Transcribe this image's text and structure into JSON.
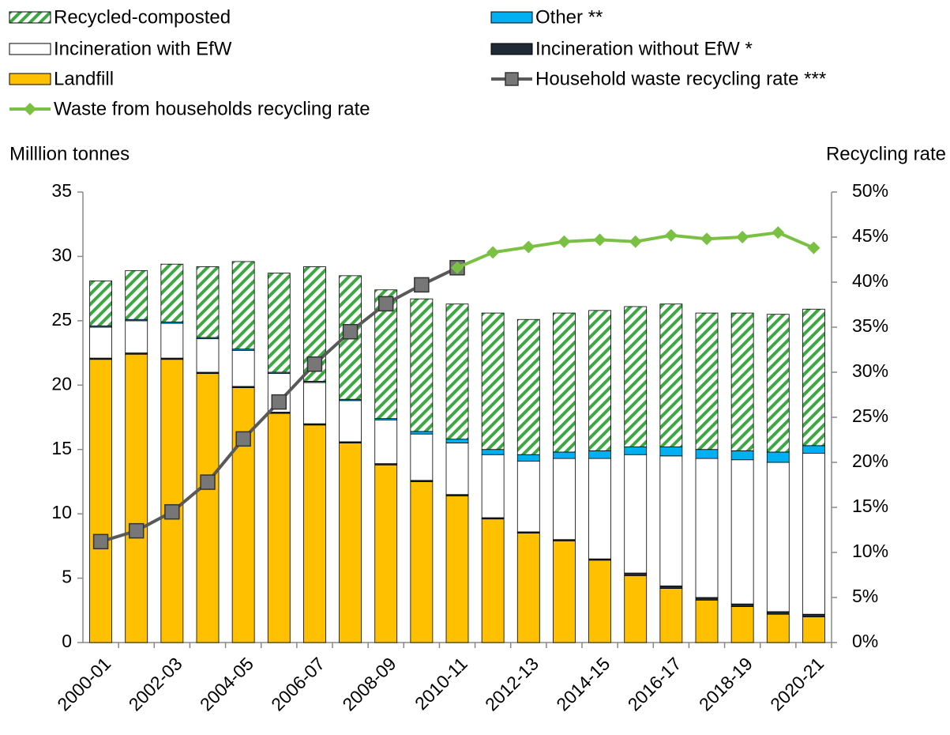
{
  "chart_data": {
    "type": "bar",
    "y_label": "Milllion tonnes",
    "y2_label": "Recycling rate",
    "categories": [
      "2000-01",
      null,
      "2002-03",
      null,
      "2004-05",
      null,
      "2006-07",
      null,
      "2008-09",
      null,
      "2010-11",
      null,
      "2012-13",
      null,
      "2014-15",
      null,
      "2016-17",
      null,
      "2018-19",
      null,
      "2020-21"
    ],
    "ylim": [
      0,
      35
    ],
    "yticks": [
      0,
      5,
      10,
      15,
      20,
      25,
      30,
      35
    ],
    "y2lim": [
      0,
      50
    ],
    "y2ticks": [
      {
        "value": 0,
        "label": "0%"
      },
      {
        "value": 5,
        "label": "5%"
      },
      {
        "value": 10,
        "label": "10%"
      },
      {
        "value": 15,
        "label": "15%"
      },
      {
        "value": 20,
        "label": "20%"
      },
      {
        "value": 25,
        "label": "25%"
      },
      {
        "value": 30,
        "label": "30%"
      },
      {
        "value": 35,
        "label": "35%"
      },
      {
        "value": 40,
        "label": "40%"
      },
      {
        "value": 45,
        "label": "45%"
      },
      {
        "value": 50,
        "label": "50%"
      }
    ],
    "stacked": true,
    "series": [
      {
        "name": "Landfill",
        "type": "bar",
        "color": "#FFC000",
        "values": [
          22.0,
          22.4,
          22.0,
          20.9,
          19.8,
          17.8,
          16.9,
          15.5,
          13.8,
          12.5,
          11.4,
          9.6,
          8.5,
          7.9,
          6.4,
          5.2,
          4.2,
          3.3,
          2.8,
          2.2,
          2.0
        ]
      },
      {
        "name": "Incineration without EfW *",
        "type": "bar",
        "color": "#1F2A36",
        "values": [
          0.1,
          0.1,
          0.1,
          0.1,
          0.1,
          0.1,
          0.1,
          0.1,
          0.1,
          0.1,
          0.1,
          0.1,
          0.1,
          0.1,
          0.1,
          0.2,
          0.2,
          0.2,
          0.2,
          0.2,
          0.2
        ]
      },
      {
        "name": "Incineration with EfW",
        "type": "bar",
        "color": "#FFFFFF",
        "values": [
          2.4,
          2.5,
          2.7,
          2.6,
          2.8,
          3.0,
          3.2,
          3.2,
          3.4,
          3.6,
          4.0,
          4.9,
          5.5,
          6.3,
          7.8,
          9.2,
          10.1,
          10.8,
          11.2,
          11.6,
          12.5
        ]
      },
      {
        "name": "Other **",
        "type": "bar",
        "color": "#00B0F0",
        "values": [
          0.1,
          0.1,
          0.1,
          0.1,
          0.1,
          0.1,
          0.1,
          0.1,
          0.1,
          0.2,
          0.3,
          0.4,
          0.5,
          0.5,
          0.6,
          0.6,
          0.7,
          0.7,
          0.7,
          0.8,
          0.6
        ]
      },
      {
        "name": "Recycled-composted",
        "type": "bar",
        "color": "#3CA842",
        "values": [
          3.5,
          3.8,
          4.5,
          5.5,
          6.8,
          7.7,
          8.9,
          9.6,
          10.0,
          10.3,
          10.5,
          10.6,
          10.5,
          10.8,
          10.9,
          10.9,
          11.1,
          10.6,
          10.7,
          10.7,
          10.6
        ]
      },
      {
        "name": "Household waste recycling rate ***",
        "type": "line",
        "axis": "y2",
        "color": "#595959",
        "marker": "square",
        "values": [
          11.2,
          12.4,
          14.5,
          17.8,
          22.6,
          26.7,
          30.9,
          34.5,
          37.6,
          39.7,
          41.6,
          null,
          null,
          null,
          null,
          null,
          null,
          null,
          null,
          null,
          null
        ]
      },
      {
        "name": "Waste from households recycling rate",
        "type": "line",
        "axis": "y2",
        "color": "#7AC143",
        "marker": "diamond",
        "values": [
          null,
          null,
          null,
          null,
          null,
          null,
          null,
          null,
          null,
          null,
          41.6,
          43.3,
          43.9,
          44.5,
          44.7,
          44.5,
          45.2,
          44.8,
          45.0,
          45.5,
          43.8
        ]
      }
    ]
  }
}
